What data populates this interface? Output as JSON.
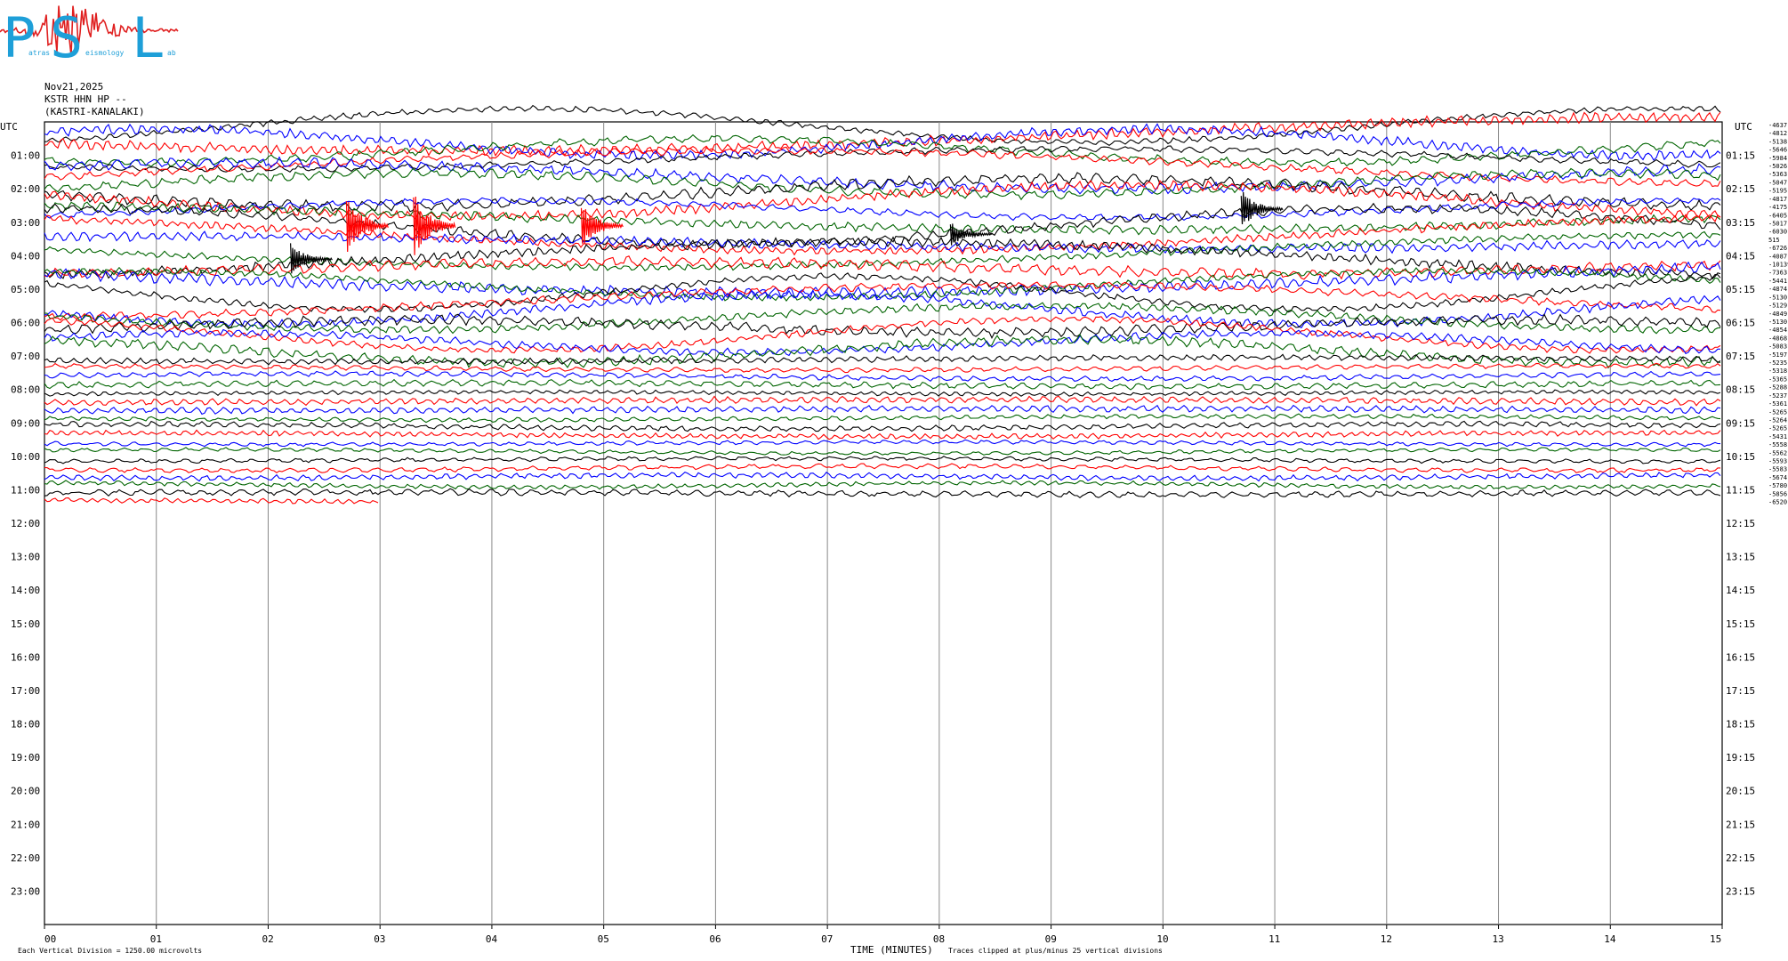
{
  "logo": {
    "letters": [
      "P",
      "S",
      "L"
    ],
    "words": [
      "atras",
      "eismology",
      "ab"
    ],
    "colors": {
      "letters": "#1e9fd8",
      "trace": "#e02020"
    }
  },
  "header": {
    "date": "Nov21,2025",
    "station": "KSTR HHN HP --",
    "location": "(KASTRI-KANALAKI)"
  },
  "utc_label": "UTC",
  "footer": {
    "scale_note": "Each Vertical Division = 1250.00 microvolts",
    "xlabel": "TIME (MINUTES)",
    "clip_note": "Traces clipped at plus/minus 25 vertical divisions"
  },
  "chart_data": {
    "type": "line",
    "xlabel": "TIME (MINUTES)",
    "xlim": [
      0,
      15
    ],
    "x_ticks": [
      "00",
      "01",
      "02",
      "03",
      "04",
      "05",
      "06",
      "07",
      "08",
      "09",
      "10",
      "11",
      "12",
      "13",
      "14",
      "15"
    ],
    "rows": 24,
    "left_labels": [
      "01:00",
      "02:00",
      "03:00",
      "04:00",
      "05:00",
      "06:00",
      "07:00",
      "08:00",
      "09:00",
      "10:00",
      "11:00",
      "12:00",
      "13:00",
      "14:00",
      "15:00",
      "16:00",
      "17:00",
      "18:00",
      "19:00",
      "20:00",
      "21:00",
      "22:00",
      "23:00"
    ],
    "right_labels": [
      "01:15",
      "02:15",
      "03:15",
      "04:15",
      "05:15",
      "06:15",
      "07:15",
      "08:15",
      "09:15",
      "10:15",
      "11:15",
      "12:15",
      "13:15",
      "14:15",
      "15:15",
      "16:15",
      "17:15",
      "18:15",
      "19:15",
      "20:15",
      "21:15",
      "22:15",
      "23:15"
    ],
    "trace_colors": [
      "#000000",
      "#ff0000",
      "#0000ff",
      "#006400"
    ],
    "trace_count": 46,
    "last_trace_end_minute": 3,
    "offsets": [
      "-4637",
      "-4812",
      "-5138",
      "-5646",
      "-5984",
      "-5026",
      "-5363",
      "-5047",
      "-5195",
      "-4817",
      "-4175",
      "-6405",
      "-5017",
      "-6030",
      "515",
      "-6726",
      "-4087",
      "-10139",
      "-7363",
      "-5441",
      "-4874",
      "-5130",
      "-5129",
      "-4849",
      "-5130",
      "-4854",
      "-4868",
      "-5083",
      "-5197",
      "-5235",
      "-5318",
      "-5365",
      "-5288",
      "-5237",
      "-5361",
      "-5265",
      "-5264",
      "-5265",
      "-5431",
      "-5558",
      "-5562",
      "-5593",
      "-5583",
      "-5674",
      "-5780",
      "-5856",
      "-6520"
    ]
  }
}
